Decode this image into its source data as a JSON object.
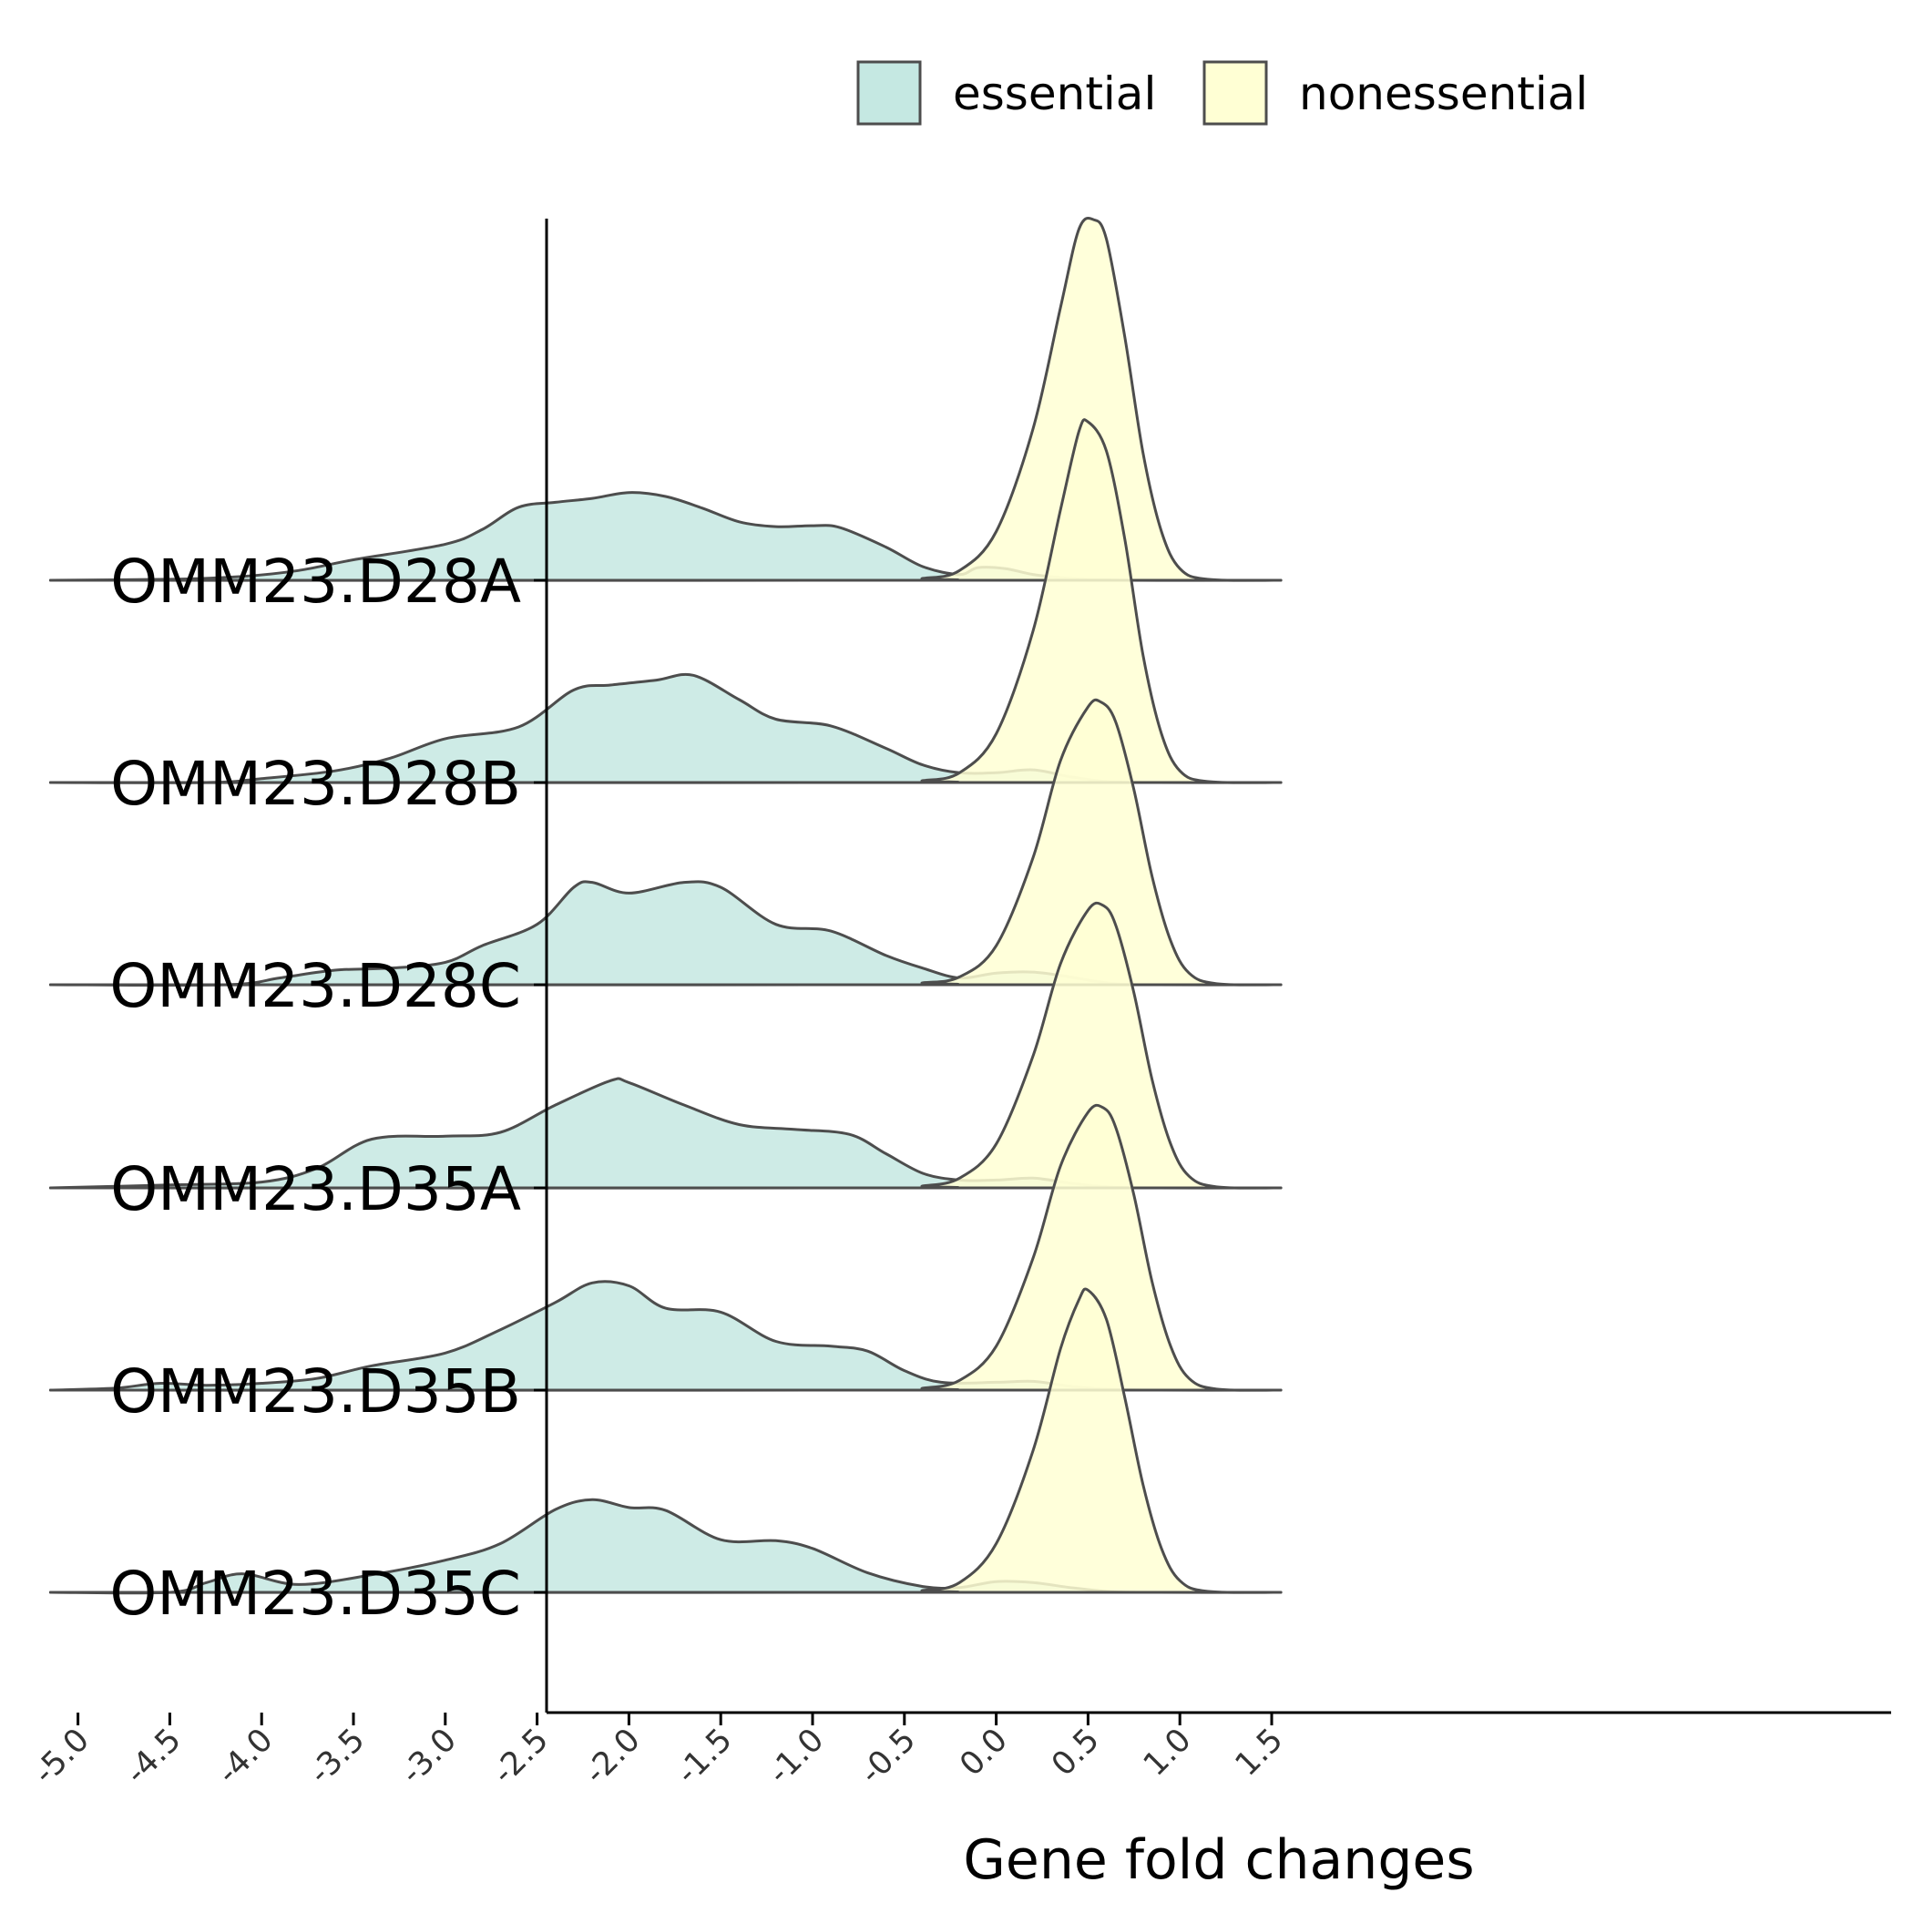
{
  "chart_data": {
    "type": "ridgeline",
    "title": "",
    "xlabel": "Gene fold changes",
    "ylabel": "",
    "xlim": [
      -5.5,
      1.85
    ],
    "x_ticks": [
      "-5.0",
      "-4.5",
      "-4.0",
      "-3.5",
      "-3.0",
      "-2.5",
      "-2.0",
      "-1.5",
      "-1.0",
      "-0.5",
      "0.0",
      "0.5",
      "1.0",
      "1.5"
    ],
    "legend": {
      "position": "top",
      "entries": [
        {
          "name": "essential",
          "color": "#c5e8e2"
        },
        {
          "name": "nonessential",
          "color": "#ffffd4"
        }
      ]
    },
    "grid": false,
    "groups": [
      {
        "name": "OMM23.D28A",
        "essential": [
          [
            -5.15,
            0
          ],
          [
            -4.5,
            0.01
          ],
          [
            -4.1,
            0.04
          ],
          [
            -3.8,
            0.1
          ],
          [
            -3.5,
            0.21
          ],
          [
            -3.0,
            0.37
          ],
          [
            -2.8,
            0.52
          ],
          [
            -2.6,
            0.75
          ],
          [
            -2.4,
            0.8
          ],
          [
            -2.2,
            0.84
          ],
          [
            -2.0,
            0.9
          ],
          [
            -1.8,
            0.86
          ],
          [
            -1.6,
            0.74
          ],
          [
            -1.4,
            0.6
          ],
          [
            -1.2,
            0.55
          ],
          [
            -1.0,
            0.56
          ],
          [
            -0.85,
            0.54
          ],
          [
            -0.6,
            0.34
          ],
          [
            -0.4,
            0.14
          ],
          [
            -0.2,
            0.06
          ],
          [
            -0.1,
            0.13
          ],
          [
            0.05,
            0.12
          ],
          [
            0.2,
            0.06
          ],
          [
            0.4,
            0.02
          ],
          [
            0.7,
            0
          ],
          [
            1.55,
            0
          ]
        ],
        "nonessential": [
          [
            -5.15,
            0
          ],
          [
            -0.6,
            0
          ],
          [
            -0.4,
            0.02
          ],
          [
            -0.2,
            0.1
          ],
          [
            0.0,
            0.5
          ],
          [
            0.2,
            1.55
          ],
          [
            0.35,
            2.8
          ],
          [
            0.45,
            3.6
          ],
          [
            0.53,
            3.7
          ],
          [
            0.6,
            3.5
          ],
          [
            0.7,
            2.5
          ],
          [
            0.8,
            1.3
          ],
          [
            0.9,
            0.5
          ],
          [
            1.0,
            0.12
          ],
          [
            1.15,
            0.01
          ],
          [
            1.55,
            0
          ]
        ]
      },
      {
        "name": "OMM23.D28B",
        "essential": [
          [
            -5.15,
            0
          ],
          [
            -4.3,
            0
          ],
          [
            -4.0,
            0.04
          ],
          [
            -3.6,
            0.12
          ],
          [
            -3.3,
            0.25
          ],
          [
            -3.0,
            0.45
          ],
          [
            -2.6,
            0.57
          ],
          [
            -2.3,
            0.95
          ],
          [
            -2.1,
            1.0
          ],
          [
            -1.85,
            1.05
          ],
          [
            -1.65,
            1.1
          ],
          [
            -1.4,
            0.85
          ],
          [
            -1.2,
            0.65
          ],
          [
            -0.9,
            0.58
          ],
          [
            -0.6,
            0.35
          ],
          [
            -0.4,
            0.18
          ],
          [
            -0.2,
            0.1
          ],
          [
            0.0,
            0.1
          ],
          [
            0.2,
            0.13
          ],
          [
            0.4,
            0.06
          ],
          [
            0.6,
            0.01
          ],
          [
            0.8,
            0
          ],
          [
            1.55,
            0
          ]
        ],
        "nonessential": [
          [
            -5.15,
            0
          ],
          [
            -0.6,
            0
          ],
          [
            -0.4,
            0.02
          ],
          [
            -0.2,
            0.1
          ],
          [
            0.0,
            0.5
          ],
          [
            0.2,
            1.55
          ],
          [
            0.35,
            2.8
          ],
          [
            0.45,
            3.6
          ],
          [
            0.5,
            3.7
          ],
          [
            0.6,
            3.4
          ],
          [
            0.7,
            2.5
          ],
          [
            0.8,
            1.3
          ],
          [
            0.9,
            0.5
          ],
          [
            1.0,
            0.12
          ],
          [
            1.15,
            0.01
          ],
          [
            1.55,
            0
          ]
        ]
      },
      {
        "name": "OMM23.D28C",
        "essential": [
          [
            -5.15,
            0
          ],
          [
            -4.2,
            0
          ],
          [
            -3.9,
            0.07
          ],
          [
            -3.6,
            0.15
          ],
          [
            -3.3,
            0.17
          ],
          [
            -3.0,
            0.23
          ],
          [
            -2.8,
            0.4
          ],
          [
            -2.5,
            0.62
          ],
          [
            -2.3,
            1.0
          ],
          [
            -2.2,
            1.05
          ],
          [
            -2.0,
            0.94
          ],
          [
            -1.7,
            1.05
          ],
          [
            -1.5,
            1.0
          ],
          [
            -1.2,
            0.62
          ],
          [
            -0.9,
            0.55
          ],
          [
            -0.6,
            0.3
          ],
          [
            -0.4,
            0.17
          ],
          [
            -0.2,
            0.07
          ],
          [
            0.0,
            0.12
          ],
          [
            0.2,
            0.13
          ],
          [
            0.4,
            0.08
          ],
          [
            0.6,
            0.02
          ],
          [
            0.8,
            0
          ],
          [
            1.55,
            0
          ]
        ],
        "nonessential": [
          [
            -5.15,
            0
          ],
          [
            -0.6,
            0
          ],
          [
            -0.4,
            0.02
          ],
          [
            -0.2,
            0.08
          ],
          [
            0.0,
            0.4
          ],
          [
            0.2,
            1.3
          ],
          [
            0.35,
            2.3
          ],
          [
            0.5,
            2.85
          ],
          [
            0.57,
            2.9
          ],
          [
            0.65,
            2.7
          ],
          [
            0.75,
            2.0
          ],
          [
            0.85,
            1.1
          ],
          [
            0.95,
            0.45
          ],
          [
            1.05,
            0.12
          ],
          [
            1.2,
            0.01
          ],
          [
            1.55,
            0
          ]
        ]
      },
      {
        "name": "OMM23.D35A",
        "essential": [
          [
            -5.15,
            0
          ],
          [
            -4.5,
            0.03
          ],
          [
            -4.0,
            0.06
          ],
          [
            -3.7,
            0.2
          ],
          [
            -3.4,
            0.5
          ],
          [
            -3.0,
            0.53
          ],
          [
            -2.7,
            0.57
          ],
          [
            -2.4,
            0.85
          ],
          [
            -2.1,
            1.1
          ],
          [
            -2.0,
            1.08
          ],
          [
            -1.7,
            0.85
          ],
          [
            -1.4,
            0.65
          ],
          [
            -1.1,
            0.6
          ],
          [
            -0.8,
            0.55
          ],
          [
            -0.6,
            0.35
          ],
          [
            -0.4,
            0.15
          ],
          [
            -0.2,
            0.08
          ],
          [
            0.0,
            0.08
          ],
          [
            0.2,
            0.1
          ],
          [
            0.4,
            0.05
          ],
          [
            0.6,
            0.01
          ],
          [
            0.8,
            0
          ],
          [
            1.55,
            0
          ]
        ],
        "nonessential": [
          [
            -5.15,
            0
          ],
          [
            -0.6,
            0
          ],
          [
            -0.4,
            0.02
          ],
          [
            -0.2,
            0.1
          ],
          [
            0.0,
            0.45
          ],
          [
            0.2,
            1.35
          ],
          [
            0.35,
            2.3
          ],
          [
            0.5,
            2.85
          ],
          [
            0.58,
            2.9
          ],
          [
            0.65,
            2.7
          ],
          [
            0.75,
            2.0
          ],
          [
            0.85,
            1.1
          ],
          [
            0.95,
            0.45
          ],
          [
            1.05,
            0.12
          ],
          [
            1.2,
            0.01
          ],
          [
            1.55,
            0
          ]
        ]
      },
      {
        "name": "OMM23.D35B",
        "essential": [
          [
            -5.15,
            0
          ],
          [
            -4.8,
            0.02
          ],
          [
            -4.55,
            0.07
          ],
          [
            -4.3,
            0.05
          ],
          [
            -4.0,
            0.07
          ],
          [
            -3.7,
            0.12
          ],
          [
            -3.4,
            0.25
          ],
          [
            -3.0,
            0.38
          ],
          [
            -2.7,
            0.62
          ],
          [
            -2.4,
            0.9
          ],
          [
            -2.2,
            1.1
          ],
          [
            -2.0,
            1.07
          ],
          [
            -1.8,
            0.84
          ],
          [
            -1.5,
            0.8
          ],
          [
            -1.2,
            0.5
          ],
          [
            -0.9,
            0.45
          ],
          [
            -0.7,
            0.4
          ],
          [
            -0.5,
            0.2
          ],
          [
            -0.3,
            0.08
          ],
          [
            0.0,
            0.08
          ],
          [
            0.2,
            0.09
          ],
          [
            0.4,
            0.04
          ],
          [
            0.6,
            0.01
          ],
          [
            0.8,
            0
          ],
          [
            1.55,
            0
          ]
        ],
        "nonessential": [
          [
            -5.15,
            0
          ],
          [
            -0.6,
            0
          ],
          [
            -0.4,
            0.02
          ],
          [
            -0.2,
            0.1
          ],
          [
            0.0,
            0.45
          ],
          [
            0.2,
            1.35
          ],
          [
            0.35,
            2.3
          ],
          [
            0.5,
            2.85
          ],
          [
            0.58,
            2.9
          ],
          [
            0.65,
            2.7
          ],
          [
            0.75,
            2.0
          ],
          [
            0.85,
            1.1
          ],
          [
            0.95,
            0.45
          ],
          [
            1.05,
            0.12
          ],
          [
            1.2,
            0.01
          ],
          [
            1.55,
            0
          ]
        ]
      },
      {
        "name": "OMM23.D35C",
        "essential": [
          [
            -5.15,
            0
          ],
          [
            -4.5,
            0
          ],
          [
            -4.3,
            0.1
          ],
          [
            -4.1,
            0.19
          ],
          [
            -3.8,
            0.08
          ],
          [
            -3.4,
            0.18
          ],
          [
            -3.0,
            0.33
          ],
          [
            -2.7,
            0.5
          ],
          [
            -2.4,
            0.85
          ],
          [
            -2.2,
            0.95
          ],
          [
            -2.0,
            0.87
          ],
          [
            -1.8,
            0.84
          ],
          [
            -1.5,
            0.54
          ],
          [
            -1.2,
            0.53
          ],
          [
            -1.0,
            0.45
          ],
          [
            -0.7,
            0.2
          ],
          [
            -0.4,
            0.06
          ],
          [
            -0.2,
            0.05
          ],
          [
            0.0,
            0.11
          ],
          [
            0.2,
            0.1
          ],
          [
            0.4,
            0.05
          ],
          [
            0.6,
            0.01
          ],
          [
            0.8,
            0
          ],
          [
            1.55,
            0
          ]
        ],
        "nonessential": [
          [
            -5.15,
            0
          ],
          [
            -0.6,
            0
          ],
          [
            -0.4,
            0.02
          ],
          [
            -0.2,
            0.1
          ],
          [
            0.0,
            0.5
          ],
          [
            0.2,
            1.45
          ],
          [
            0.35,
            2.5
          ],
          [
            0.45,
            3.0
          ],
          [
            0.5,
            3.1
          ],
          [
            0.6,
            2.8
          ],
          [
            0.7,
            2.0
          ],
          [
            0.8,
            1.1
          ],
          [
            0.9,
            0.45
          ],
          [
            1.0,
            0.12
          ],
          [
            1.15,
            0.01
          ],
          [
            1.55,
            0
          ]
        ]
      }
    ]
  }
}
